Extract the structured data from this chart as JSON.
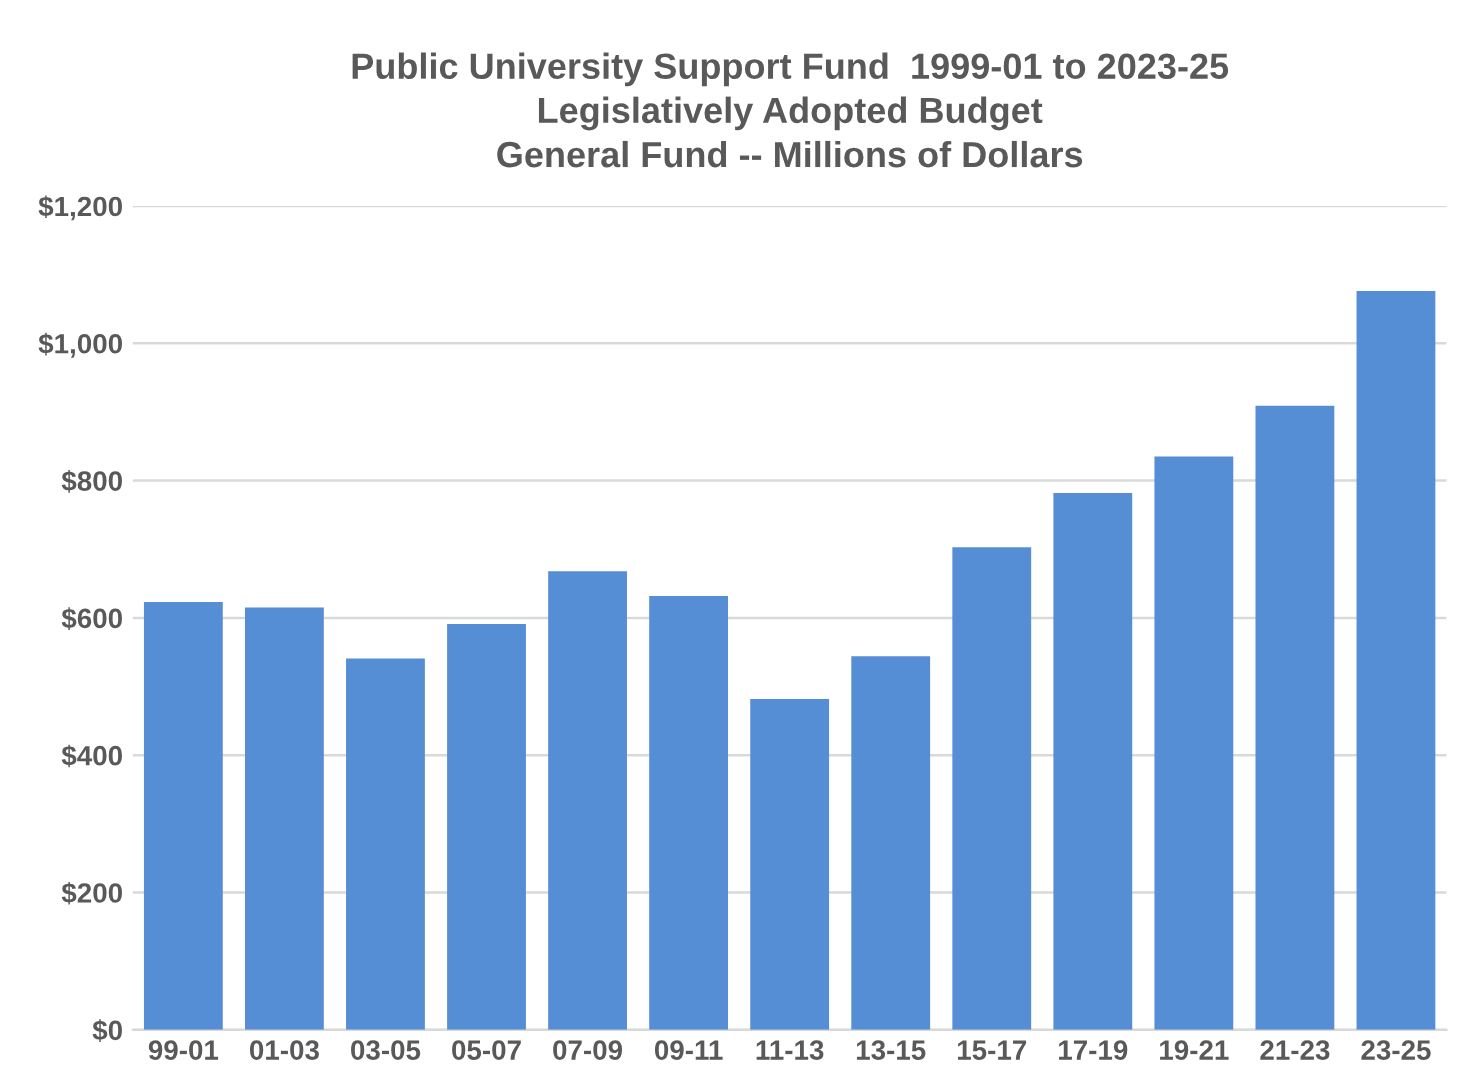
{
  "chart_data": {
    "type": "bar",
    "title": "Public University Support Fund  1999-01 to 2023-25\nLegislatively Adopted Budget\nGeneral Fund -- Millions of Dollars",
    "categories": [
      "99-01",
      "01-03",
      "03-05",
      "05-07",
      "07-09",
      "09-11",
      "11-13",
      "13-15",
      "15-17",
      "17-19",
      "19-21",
      "21-23",
      "23-25"
    ],
    "values": [
      623,
      615,
      541,
      591,
      668,
      632,
      482,
      544,
      703,
      782,
      835,
      909,
      1076
    ],
    "color": "#558ed5",
    "ylim": [
      0,
      1200
    ],
    "yticks": [
      {
        "value": 0,
        "label": "$0"
      },
      {
        "value": 200,
        "label": "$200"
      },
      {
        "value": 400,
        "label": "$400"
      },
      {
        "value": 600,
        "label": "$600"
      },
      {
        "value": 800,
        "label": "$800"
      },
      {
        "value": 1000,
        "label": "$1,000"
      },
      {
        "value": 1200,
        "label": "$1,200"
      }
    ],
    "grid": "y"
  }
}
